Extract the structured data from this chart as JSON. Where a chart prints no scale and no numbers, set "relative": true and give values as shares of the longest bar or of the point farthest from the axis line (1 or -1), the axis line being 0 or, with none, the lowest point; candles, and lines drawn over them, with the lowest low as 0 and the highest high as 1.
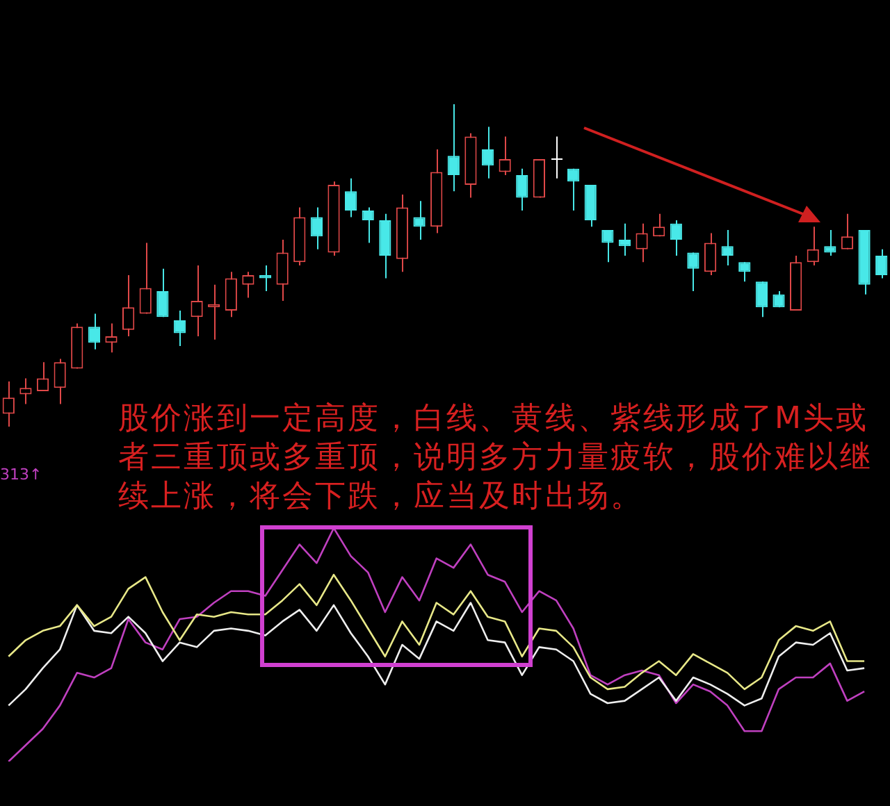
{
  "chart_data": [
    {
      "type": "candlestick",
      "relative": true,
      "categories": [
        null,
        null,
        null,
        null,
        null,
        null,
        null,
        null,
        null,
        null,
        null,
        null,
        null,
        null,
        null,
        null,
        null,
        null,
        null,
        null,
        null,
        null,
        null,
        null,
        null,
        null,
        null,
        null,
        null,
        null,
        null,
        null,
        null,
        null,
        null,
        null,
        null,
        null,
        null,
        null,
        null,
        null,
        null,
        null,
        null,
        null,
        null,
        null,
        null,
        null,
        null,
        null
      ],
      "ohlc": [
        [
          0.04,
          0.14,
          0,
          0.09
        ],
        [
          0.1,
          0.15,
          0.07,
          0.12
        ],
        [
          0.11,
          0.2,
          0.11,
          0.15
        ],
        [
          0.12,
          0.21,
          0.07,
          0.2
        ],
        [
          0.18,
          0.32,
          0.18,
          0.31
        ],
        [
          0.31,
          0.35,
          0.24,
          0.26
        ],
        [
          0.26,
          0.32,
          0.23,
          0.28
        ],
        [
          0.3,
          0.47,
          0.28,
          0.37
        ],
        [
          0.35,
          0.57,
          0.35,
          0.43
        ],
        [
          0.42,
          0.49,
          0.34,
          0.34
        ],
        [
          0.33,
          0.36,
          0.25,
          0.29
        ],
        [
          0.34,
          0.5,
          0.28,
          0.39
        ],
        [
          0.37,
          0.44,
          0.27,
          0.38
        ],
        [
          0.36,
          0.48,
          0.34,
          0.46
        ],
        [
          0.44,
          0.48,
          0.4,
          0.47
        ],
        [
          0.47,
          0.5,
          0.42,
          0.46
        ],
        [
          0.44,
          0.58,
          0.39,
          0.54
        ],
        [
          0.51,
          0.68,
          0.5,
          0.65
        ],
        [
          0.65,
          0.68,
          0.55,
          0.59
        ],
        [
          0.54,
          0.76,
          0.53,
          0.75
        ],
        [
          0.73,
          0.77,
          0.65,
          0.67
        ],
        [
          0.67,
          0.68,
          0.57,
          0.64
        ],
        [
          0.64,
          0.66,
          0.46,
          0.53
        ],
        [
          0.52,
          0.72,
          0.48,
          0.68
        ],
        [
          0.65,
          0.7,
          0.58,
          0.62
        ],
        [
          0.62,
          0.86,
          0.6,
          0.79
        ],
        [
          0.84,
          1,
          0.73,
          0.78
        ],
        [
          0.75,
          0.91,
          0.71,
          0.9
        ],
        [
          0.86,
          0.93,
          0.77,
          0.81
        ],
        [
          0.79,
          0.9,
          0.78,
          0.83
        ],
        [
          0.78,
          0.8,
          0.67,
          0.71
        ],
        [
          0.71,
          0.83,
          0.71,
          0.83
        ],
        [
          0.83,
          0.9,
          0.77,
          0.83
        ],
        [
          0.8,
          0.8,
          0.67,
          0.76
        ],
        [
          0.75,
          0.75,
          0.62,
          0.64
        ],
        [
          0.61,
          0.61,
          0.51,
          0.57
        ],
        [
          0.58,
          0.63,
          0.53,
          0.56
        ],
        [
          0.55,
          0.63,
          0.51,
          0.6
        ],
        [
          0.59,
          0.66,
          0.59,
          0.62
        ],
        [
          0.63,
          0.64,
          0.53,
          0.58
        ],
        [
          0.54,
          0.54,
          0.42,
          0.49
        ],
        [
          0.48,
          0.6,
          0.47,
          0.57
        ],
        [
          0.56,
          0.61,
          0.5,
          0.53
        ],
        [
          0.51,
          0.51,
          0.45,
          0.48
        ],
        [
          0.45,
          0.45,
          0.34,
          0.37
        ],
        [
          0.41,
          0.42,
          0.37,
          0.37
        ],
        [
          0.36,
          0.53,
          0.36,
          0.51
        ],
        [
          0.51,
          0.62,
          0.5,
          0.55
        ],
        [
          0.56,
          0.61,
          0.53,
          0.54
        ],
        [
          0.55,
          0.66,
          0.55,
          0.59
        ],
        [
          0.61,
          0.61,
          0.41,
          0.44
        ],
        [
          0.53,
          0.55,
          0.46,
          0.47
        ]
      ],
      "colors": [
        "#e04848",
        "#e04848",
        "#e04848",
        "#e04848",
        "#e04848",
        "#48e8e8",
        "#e04848",
        "#e04848",
        "#e04848",
        "#48e8e8",
        "#48e8e8",
        "#e04848",
        "#e04848",
        "#e04848",
        "#e04848",
        "#48e8e8",
        "#e04848",
        "#e04848",
        "#48e8e8",
        "#e04848",
        "#48e8e8",
        "#48e8e8",
        "#48e8e8",
        "#e04848",
        "#48e8e8",
        "#e04848",
        "#48e8e8",
        "#e04848",
        "#48e8e8",
        "#e04848",
        "#48e8e8",
        "#e04848",
        "#ffffff",
        "#48e8e8",
        "#48e8e8",
        "#48e8e8",
        "#48e8e8",
        "#e04848",
        "#e04848",
        "#48e8e8",
        "#48e8e8",
        "#e04848",
        "#48e8e8",
        "#48e8e8",
        "#48e8e8",
        "#48e8e8",
        "#e04848",
        "#e04848",
        "#48e8e8",
        "#e04848",
        "#48e8e8",
        "#48e8e8"
      ],
      "annotations": [
        "股价涨到一定高度，白线、黄线、紫线形成了M头或者三重顶或多重顶，说明多方力量疲软，股价难以继续上涨，将会下跌，应当及时出场。"
      ]
    },
    {
      "type": "line",
      "relative": true,
      "categories": [
        null,
        null,
        null,
        null,
        null,
        null,
        null,
        null,
        null,
        null,
        null,
        null,
        null,
        null,
        null,
        null,
        null,
        null,
        null,
        null,
        null,
        null,
        null,
        null,
        null,
        null,
        null,
        null,
        null,
        null,
        null,
        null,
        null,
        null,
        null,
        null,
        null,
        null,
        null,
        null,
        null,
        null,
        null,
        null,
        null,
        null,
        null,
        null,
        null,
        null,
        null,
        null
      ],
      "series": [
        {
          "color": "#e8e888",
          "values": [
            0.45,
            0.52,
            0.56,
            0.58,
            0.67,
            0.58,
            0.62,
            0.74,
            0.79,
            0.64,
            0.52,
            0.63,
            0.62,
            0.64,
            0.63,
            0.63,
            0.69,
            0.76,
            0.67,
            0.8,
            0.69,
            0.57,
            0.45,
            0.6,
            0.5,
            0.68,
            0.63,
            0.73,
            0.62,
            0.6,
            0.45,
            0.57,
            0.56,
            0.49,
            0.36,
            0.31,
            0.32,
            0.38,
            0.43,
            0.37,
            0.46,
            0.42,
            0.38,
            0.31,
            0.36,
            0.52,
            0.58,
            0.56,
            0.6,
            0.43,
            0.43,
            null
          ]
        },
        {
          "color": "#eeeeee",
          "values": [
            0.24,
            0.31,
            0.4,
            0.48,
            0.67,
            0.56,
            0.55,
            0.62,
            0.55,
            0.43,
            0.51,
            0.49,
            0.56,
            0.57,
            0.56,
            0.54,
            0.6,
            0.65,
            0.56,
            0.67,
            0.55,
            0.45,
            0.33,
            0.5,
            0.44,
            0.6,
            0.56,
            0.68,
            0.52,
            0.51,
            0.37,
            0.49,
            0.48,
            0.43,
            0.29,
            0.25,
            0.26,
            0.31,
            0.36,
            0.26,
            0.36,
            0.33,
            0.29,
            0.24,
            0.27,
            0.45,
            0.51,
            0.5,
            0.55,
            0.39,
            0.4,
            null
          ]
        },
        {
          "color": "#c040c0",
          "values": [
            0,
            0.07,
            0.14,
            0.24,
            0.38,
            0.36,
            0.4,
            0.61,
            0.51,
            0.48,
            0.61,
            0.62,
            0.68,
            0.73,
            0.73,
            0.71,
            0.82,
            0.93,
            0.85,
            1,
            0.88,
            0.81,
            0.64,
            0.79,
            0.69,
            0.87,
            0.83,
            0.93,
            0.8,
            0.77,
            0.64,
            0.73,
            0.69,
            0.57,
            0.37,
            0.33,
            0.37,
            0.39,
            0.37,
            0.25,
            0.33,
            0.3,
            0.24,
            0.13,
            0.13,
            0.31,
            0.36,
            0.36,
            0.42,
            0.26,
            0.3,
            null
          ]
        }
      ],
      "annotations": [
        "313↑"
      ]
    }
  ]
}
